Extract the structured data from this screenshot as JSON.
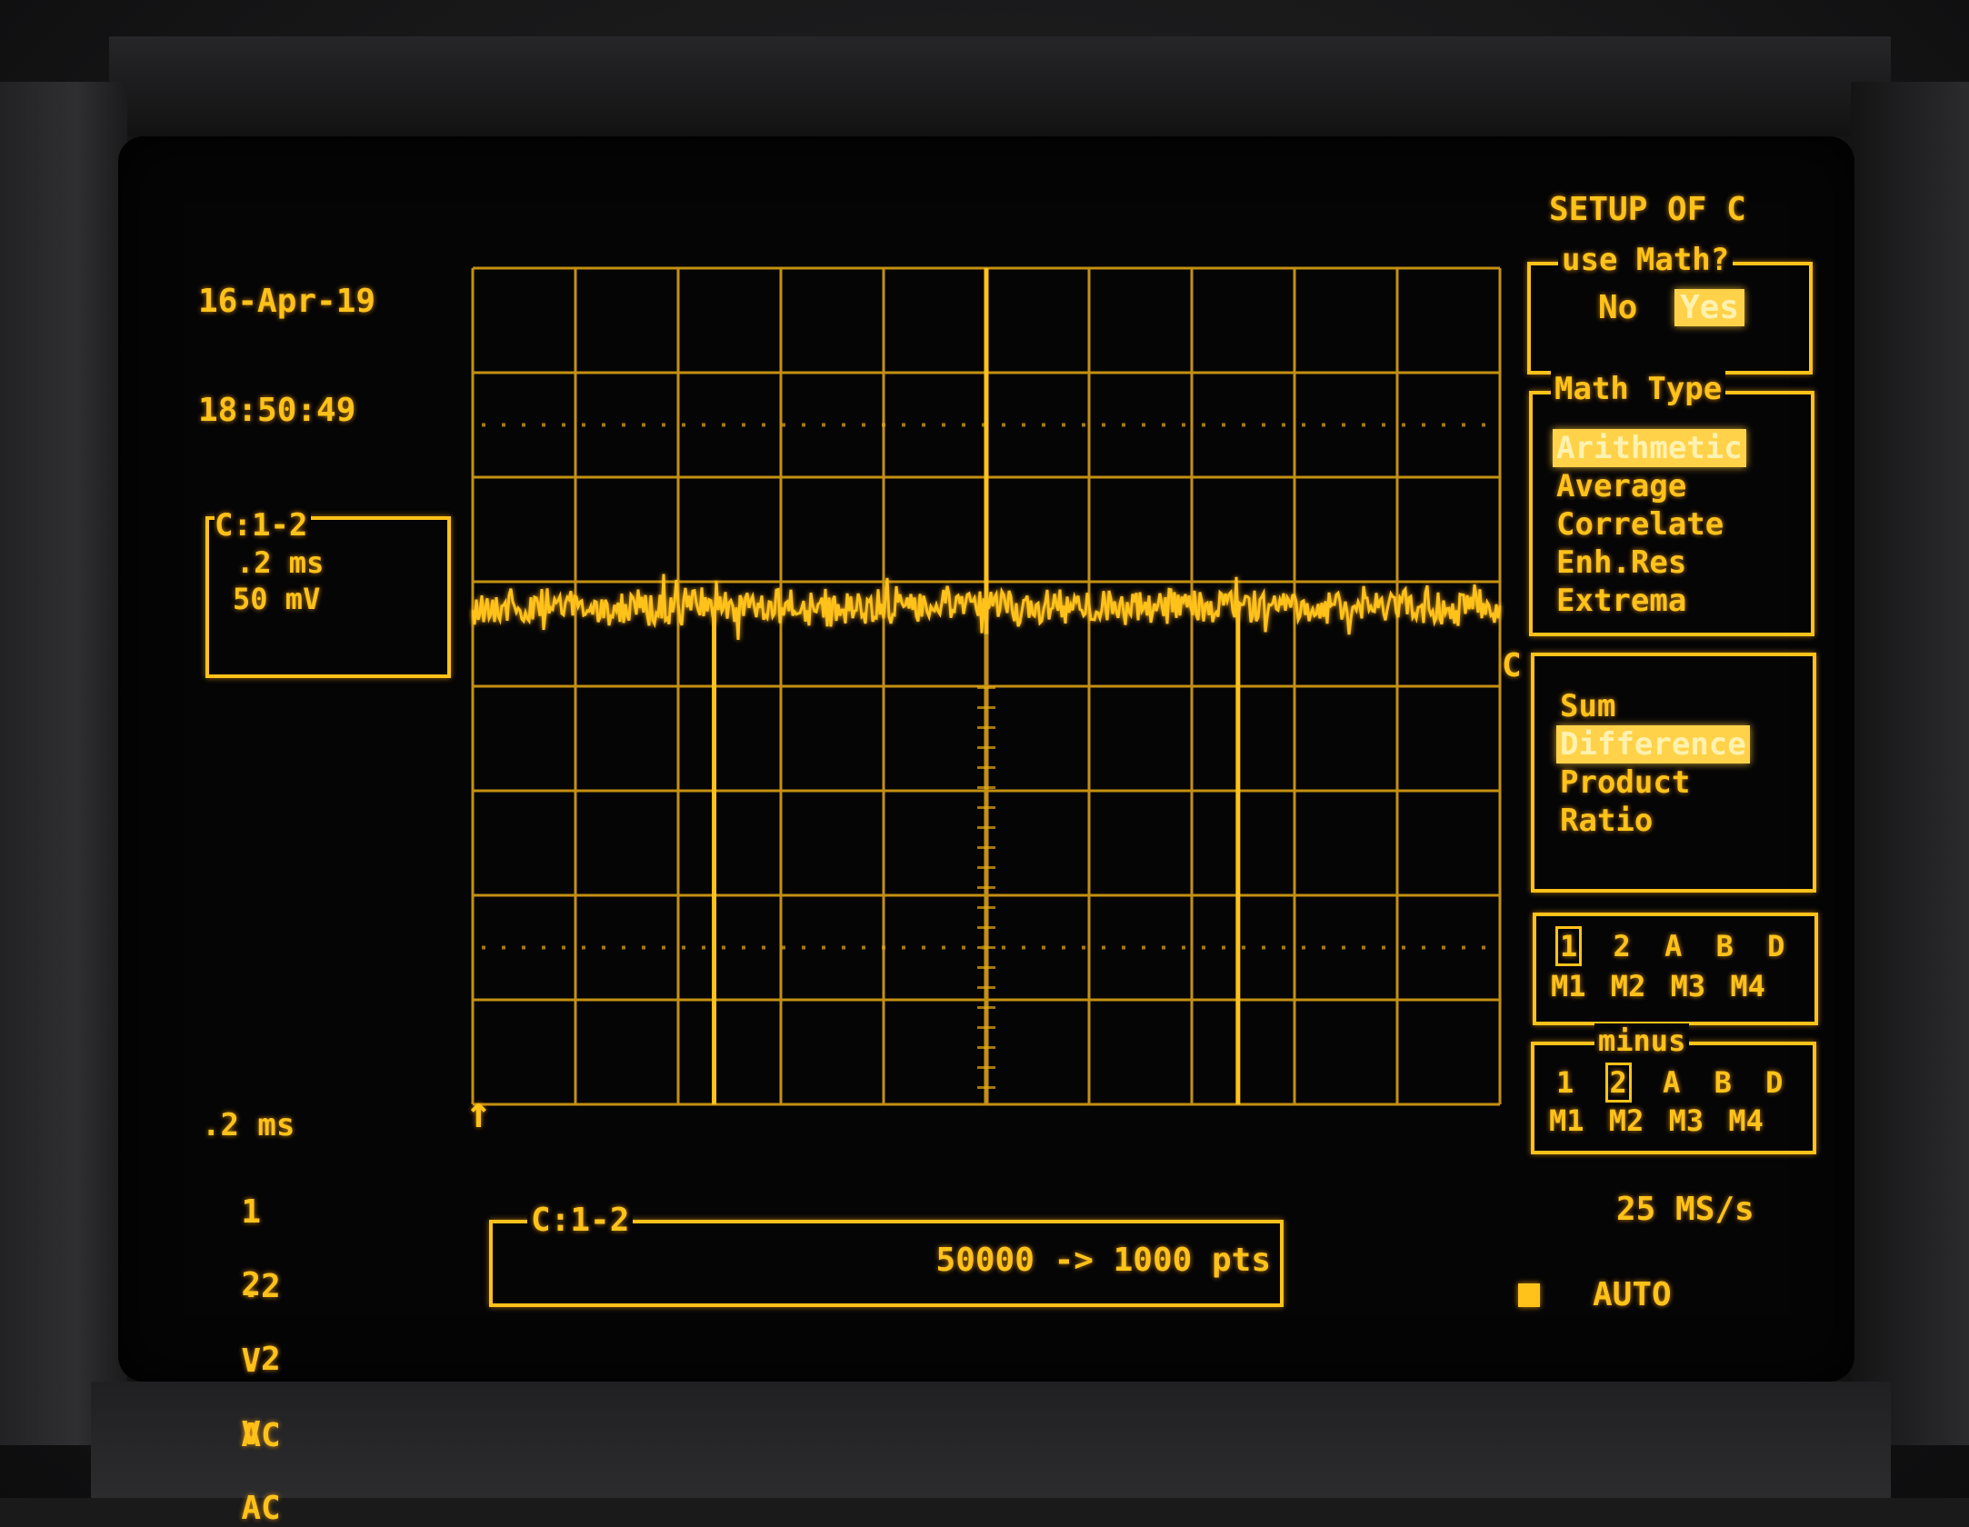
{
  "timestamp": {
    "date": "16-Apr-19",
    "time": "18:50:49"
  },
  "channel_box": {
    "label": "C:1-2",
    "timebase": ".2 ms",
    "volts": "50 mV"
  },
  "settings": {
    "timebase": ".2 ms",
    "ch1": {
      "num": "1",
      "volts": ".2",
      "unit": "V",
      "coupling": "AC"
    },
    "ch2": {
      "num": "2",
      "volts": ".2",
      "unit": "V",
      "coupling": "AC"
    }
  },
  "trace_box": {
    "label": "C:1-2",
    "points": "50000 -> 1000 pts"
  },
  "trace_marker": "C",
  "setup": {
    "title": "SETUP OF C",
    "use_math": {
      "legend": "use Math?",
      "options": [
        "No",
        "Yes"
      ],
      "selected": "Yes"
    },
    "math_type": {
      "legend": "Math Type",
      "items": [
        "Arithmetic",
        "Average",
        "Correlate",
        "Enh.Res",
        "Extrema"
      ],
      "selected": "Arithmetic"
    },
    "operation": {
      "items": [
        "Sum",
        "Difference",
        "Product",
        "Ratio"
      ],
      "selected": "Difference"
    },
    "source1": {
      "top": [
        "1",
        "2",
        "A",
        "B",
        "D"
      ],
      "bottom": [
        "M1",
        "M2",
        "M3",
        "M4"
      ],
      "selected": "1"
    },
    "minus": {
      "legend": "minus",
      "top": [
        "1",
        "2",
        "A",
        "B",
        "D"
      ],
      "bottom": [
        "M1",
        "M2",
        "M3",
        "M4"
      ],
      "selected": "2"
    },
    "sample_rate": "25 MS/s",
    "trigger_mode": "AUTO"
  },
  "colors": {
    "trace": "#ffc21a",
    "background": "#050506",
    "highlight": "#ffd24a"
  }
}
